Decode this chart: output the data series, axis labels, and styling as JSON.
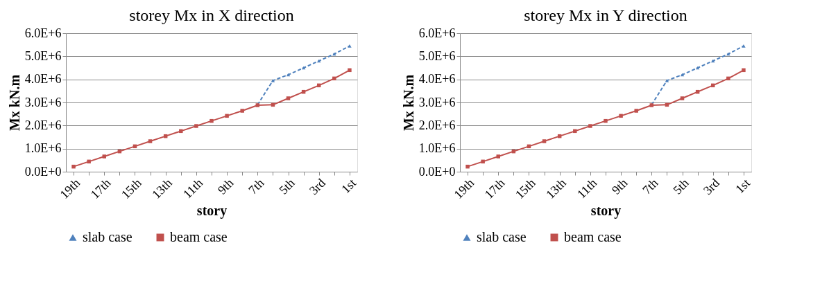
{
  "chart_data": [
    {
      "type": "line",
      "title": "storey Mx in X direction",
      "xlabel": "story",
      "ylabel": "Mx kN.m",
      "categories": [
        "19th",
        null,
        "17th",
        null,
        "15th",
        null,
        "13th",
        null,
        "11th",
        null,
        "9th",
        null,
        "7th",
        null,
        "5th",
        null,
        "3rd",
        null,
        "1st"
      ],
      "series": [
        {
          "name": "slab case",
          "color": "#4f81bd",
          "marker": "triangle",
          "line_style": "dashed",
          "values": [
            null,
            null,
            null,
            null,
            null,
            null,
            null,
            null,
            null,
            null,
            null,
            null,
            2900000,
            3950000,
            4200000,
            4500000,
            4800000,
            5100000,
            5450000
          ]
        },
        {
          "name": "beam case",
          "color": "#c0504d",
          "marker": "square",
          "line_style": "solid",
          "values": [
            220000,
            440000,
            660000,
            880000,
            1100000,
            1320000,
            1540000,
            1760000,
            1980000,
            2200000,
            2420000,
            2640000,
            2880000,
            2900000,
            3180000,
            3460000,
            3740000,
            4040000,
            4400000
          ]
        }
      ],
      "ylim": [
        0,
        6000000
      ],
      "yticks": [
        {
          "value": 0,
          "label": "0.0E+0"
        },
        {
          "value": 1000000,
          "label": "1.0E+6"
        },
        {
          "value": 2000000,
          "label": "2.0E+6"
        },
        {
          "value": 3000000,
          "label": "3.0E+6"
        },
        {
          "value": 4000000,
          "label": "4.0E+6"
        },
        {
          "value": 5000000,
          "label": "5.0E+6"
        },
        {
          "value": 6000000,
          "label": "6.0E+6"
        }
      ],
      "grid": "y",
      "legend": "bottom"
    },
    {
      "type": "line",
      "title": "storey Mx in Y direction",
      "xlabel": "story",
      "ylabel": "Mx kN.m",
      "categories": [
        "19th",
        null,
        "17th",
        null,
        "15th",
        null,
        "13th",
        null,
        "11th",
        null,
        "9th",
        null,
        "7th",
        null,
        "5th",
        null,
        "3rd",
        null,
        "1st"
      ],
      "series": [
        {
          "name": "slab case",
          "color": "#4f81bd",
          "marker": "triangle",
          "line_style": "dashed",
          "values": [
            null,
            null,
            null,
            null,
            null,
            null,
            null,
            null,
            null,
            null,
            null,
            null,
            2900000,
            3950000,
            4200000,
            4500000,
            4800000,
            5100000,
            5450000
          ]
        },
        {
          "name": "beam case",
          "color": "#c0504d",
          "marker": "square",
          "line_style": "solid",
          "values": [
            220000,
            440000,
            660000,
            880000,
            1100000,
            1320000,
            1540000,
            1760000,
            1980000,
            2200000,
            2420000,
            2640000,
            2880000,
            2900000,
            3180000,
            3460000,
            3740000,
            4040000,
            4400000
          ]
        }
      ],
      "ylim": [
        0,
        6000000
      ],
      "yticks": [
        {
          "value": 0,
          "label": "0.0E+0"
        },
        {
          "value": 1000000,
          "label": "1.0E+6"
        },
        {
          "value": 2000000,
          "label": "2.0E+6"
        },
        {
          "value": 3000000,
          "label": "3.0E+6"
        },
        {
          "value": 4000000,
          "label": "4.0E+6"
        },
        {
          "value": 5000000,
          "label": "5.0E+6"
        },
        {
          "value": 6000000,
          "label": "6.0E+6"
        }
      ],
      "grid": "y",
      "legend": "bottom"
    }
  ]
}
